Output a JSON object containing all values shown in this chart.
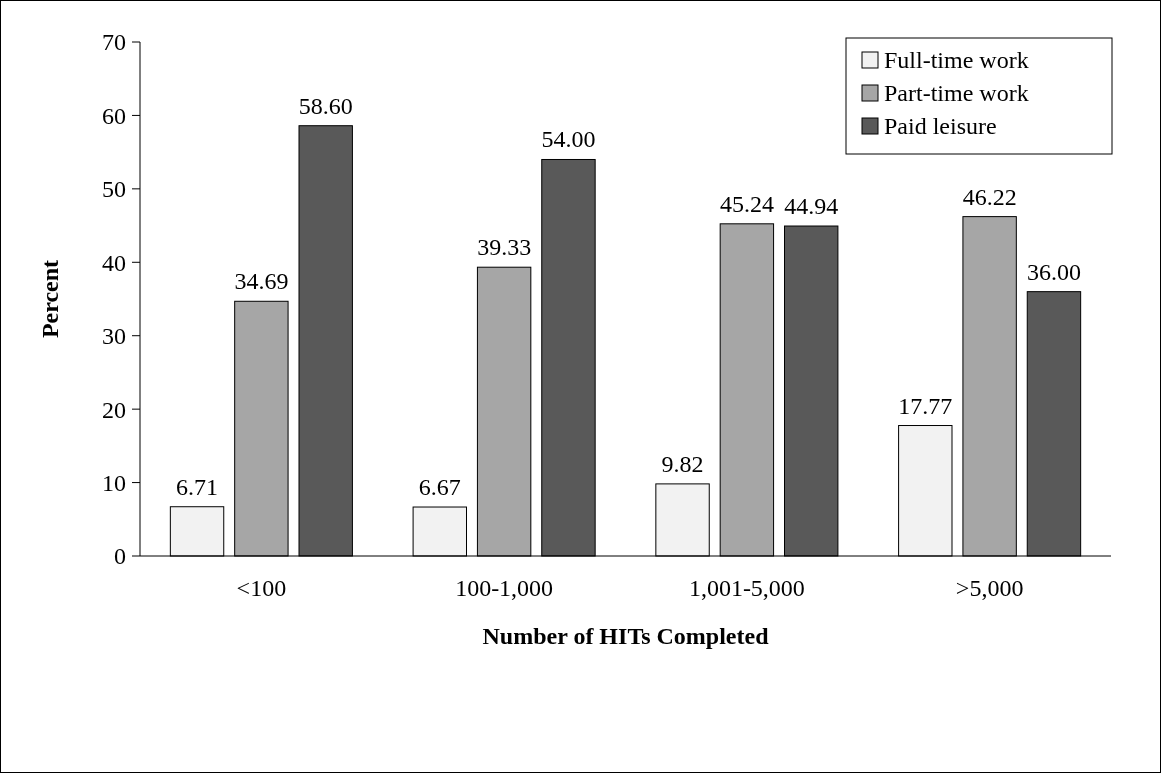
{
  "chart_data": {
    "type": "bar",
    "xlabel": "Number of HITs Completed",
    "ylabel": "Percent",
    "categories": [
      "<100",
      "100-1,000",
      "1,001-5,000",
      ">5,000"
    ],
    "series": [
      {
        "name": "Full-time work",
        "color": "#f2f2f2",
        "values": [
          6.71,
          6.67,
          9.82,
          17.77
        ],
        "value_labels": [
          "6.71",
          "6.67",
          "9.82",
          "17.77"
        ]
      },
      {
        "name": "Part-time work",
        "color": "#a6a6a6",
        "values": [
          34.69,
          39.33,
          45.24,
          46.22
        ],
        "value_labels": [
          "34.69",
          "39.33",
          "45.24",
          "46.22"
        ]
      },
      {
        "name": "Paid leisure",
        "color": "#595959",
        "values": [
          58.6,
          54,
          44.94,
          36
        ],
        "value_labels": [
          "58.60",
          "54.00",
          "44.94",
          "36.00"
        ]
      }
    ],
    "ylim": [
      0,
      70
    ],
    "yticks": [
      0,
      10,
      20,
      30,
      40,
      50,
      60,
      70
    ],
    "grid": false,
    "legend": "top right"
  }
}
